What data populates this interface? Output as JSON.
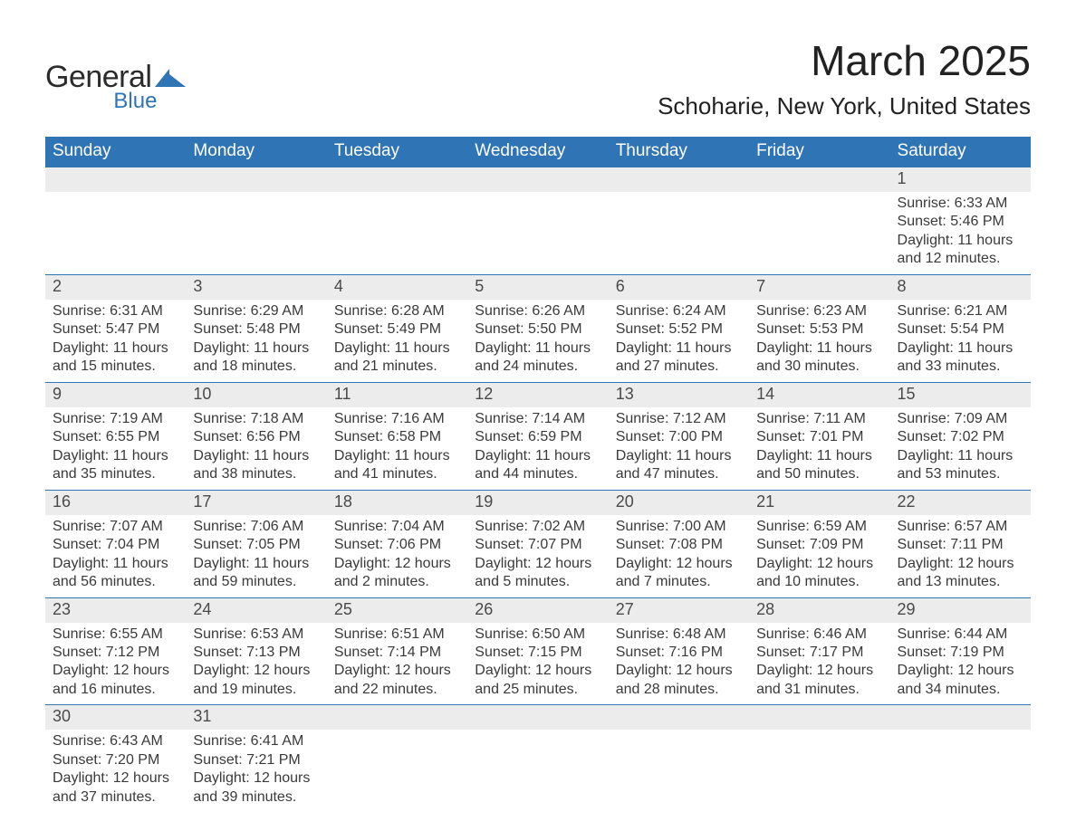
{
  "logo": {
    "general": "General",
    "blue": "Blue",
    "mark_color": "#2f74b5"
  },
  "title": "March 2025",
  "location": "Schoharie, New York, United States",
  "theme": {
    "header_bg": "#2f74b5",
    "header_fg": "#ffffff",
    "daynum_bg": "#ececec",
    "text_color": "#333333",
    "border_color": "#2f74b5",
    "page_bg": "#ffffff"
  },
  "weekdays": [
    "Sunday",
    "Monday",
    "Tuesday",
    "Wednesday",
    "Thursday",
    "Friday",
    "Saturday"
  ],
  "weeks": [
    [
      {
        "day": "",
        "sunrise": "",
        "sunset": "",
        "daylight": ""
      },
      {
        "day": "",
        "sunrise": "",
        "sunset": "",
        "daylight": ""
      },
      {
        "day": "",
        "sunrise": "",
        "sunset": "",
        "daylight": ""
      },
      {
        "day": "",
        "sunrise": "",
        "sunset": "",
        "daylight": ""
      },
      {
        "day": "",
        "sunrise": "",
        "sunset": "",
        "daylight": ""
      },
      {
        "day": "",
        "sunrise": "",
        "sunset": "",
        "daylight": ""
      },
      {
        "day": "1",
        "sunrise": "Sunrise: 6:33 AM",
        "sunset": "Sunset: 5:46 PM",
        "daylight": "Daylight: 11 hours and 12 minutes."
      }
    ],
    [
      {
        "day": "2",
        "sunrise": "Sunrise: 6:31 AM",
        "sunset": "Sunset: 5:47 PM",
        "daylight": "Daylight: 11 hours and 15 minutes."
      },
      {
        "day": "3",
        "sunrise": "Sunrise: 6:29 AM",
        "sunset": "Sunset: 5:48 PM",
        "daylight": "Daylight: 11 hours and 18 minutes."
      },
      {
        "day": "4",
        "sunrise": "Sunrise: 6:28 AM",
        "sunset": "Sunset: 5:49 PM",
        "daylight": "Daylight: 11 hours and 21 minutes."
      },
      {
        "day": "5",
        "sunrise": "Sunrise: 6:26 AM",
        "sunset": "Sunset: 5:50 PM",
        "daylight": "Daylight: 11 hours and 24 minutes."
      },
      {
        "day": "6",
        "sunrise": "Sunrise: 6:24 AM",
        "sunset": "Sunset: 5:52 PM",
        "daylight": "Daylight: 11 hours and 27 minutes."
      },
      {
        "day": "7",
        "sunrise": "Sunrise: 6:23 AM",
        "sunset": "Sunset: 5:53 PM",
        "daylight": "Daylight: 11 hours and 30 minutes."
      },
      {
        "day": "8",
        "sunrise": "Sunrise: 6:21 AM",
        "sunset": "Sunset: 5:54 PM",
        "daylight": "Daylight: 11 hours and 33 minutes."
      }
    ],
    [
      {
        "day": "9",
        "sunrise": "Sunrise: 7:19 AM",
        "sunset": "Sunset: 6:55 PM",
        "daylight": "Daylight: 11 hours and 35 minutes."
      },
      {
        "day": "10",
        "sunrise": "Sunrise: 7:18 AM",
        "sunset": "Sunset: 6:56 PM",
        "daylight": "Daylight: 11 hours and 38 minutes."
      },
      {
        "day": "11",
        "sunrise": "Sunrise: 7:16 AM",
        "sunset": "Sunset: 6:58 PM",
        "daylight": "Daylight: 11 hours and 41 minutes."
      },
      {
        "day": "12",
        "sunrise": "Sunrise: 7:14 AM",
        "sunset": "Sunset: 6:59 PM",
        "daylight": "Daylight: 11 hours and 44 minutes."
      },
      {
        "day": "13",
        "sunrise": "Sunrise: 7:12 AM",
        "sunset": "Sunset: 7:00 PM",
        "daylight": "Daylight: 11 hours and 47 minutes."
      },
      {
        "day": "14",
        "sunrise": "Sunrise: 7:11 AM",
        "sunset": "Sunset: 7:01 PM",
        "daylight": "Daylight: 11 hours and 50 minutes."
      },
      {
        "day": "15",
        "sunrise": "Sunrise: 7:09 AM",
        "sunset": "Sunset: 7:02 PM",
        "daylight": "Daylight: 11 hours and 53 minutes."
      }
    ],
    [
      {
        "day": "16",
        "sunrise": "Sunrise: 7:07 AM",
        "sunset": "Sunset: 7:04 PM",
        "daylight": "Daylight: 11 hours and 56 minutes."
      },
      {
        "day": "17",
        "sunrise": "Sunrise: 7:06 AM",
        "sunset": "Sunset: 7:05 PM",
        "daylight": "Daylight: 11 hours and 59 minutes."
      },
      {
        "day": "18",
        "sunrise": "Sunrise: 7:04 AM",
        "sunset": "Sunset: 7:06 PM",
        "daylight": "Daylight: 12 hours and 2 minutes."
      },
      {
        "day": "19",
        "sunrise": "Sunrise: 7:02 AM",
        "sunset": "Sunset: 7:07 PM",
        "daylight": "Daylight: 12 hours and 5 minutes."
      },
      {
        "day": "20",
        "sunrise": "Sunrise: 7:00 AM",
        "sunset": "Sunset: 7:08 PM",
        "daylight": "Daylight: 12 hours and 7 minutes."
      },
      {
        "day": "21",
        "sunrise": "Sunrise: 6:59 AM",
        "sunset": "Sunset: 7:09 PM",
        "daylight": "Daylight: 12 hours and 10 minutes."
      },
      {
        "day": "22",
        "sunrise": "Sunrise: 6:57 AM",
        "sunset": "Sunset: 7:11 PM",
        "daylight": "Daylight: 12 hours and 13 minutes."
      }
    ],
    [
      {
        "day": "23",
        "sunrise": "Sunrise: 6:55 AM",
        "sunset": "Sunset: 7:12 PM",
        "daylight": "Daylight: 12 hours and 16 minutes."
      },
      {
        "day": "24",
        "sunrise": "Sunrise: 6:53 AM",
        "sunset": "Sunset: 7:13 PM",
        "daylight": "Daylight: 12 hours and 19 minutes."
      },
      {
        "day": "25",
        "sunrise": "Sunrise: 6:51 AM",
        "sunset": "Sunset: 7:14 PM",
        "daylight": "Daylight: 12 hours and 22 minutes."
      },
      {
        "day": "26",
        "sunrise": "Sunrise: 6:50 AM",
        "sunset": "Sunset: 7:15 PM",
        "daylight": "Daylight: 12 hours and 25 minutes."
      },
      {
        "day": "27",
        "sunrise": "Sunrise: 6:48 AM",
        "sunset": "Sunset: 7:16 PM",
        "daylight": "Daylight: 12 hours and 28 minutes."
      },
      {
        "day": "28",
        "sunrise": "Sunrise: 6:46 AM",
        "sunset": "Sunset: 7:17 PM",
        "daylight": "Daylight: 12 hours and 31 minutes."
      },
      {
        "day": "29",
        "sunrise": "Sunrise: 6:44 AM",
        "sunset": "Sunset: 7:19 PM",
        "daylight": "Daylight: 12 hours and 34 minutes."
      }
    ],
    [
      {
        "day": "30",
        "sunrise": "Sunrise: 6:43 AM",
        "sunset": "Sunset: 7:20 PM",
        "daylight": "Daylight: 12 hours and 37 minutes."
      },
      {
        "day": "31",
        "sunrise": "Sunrise: 6:41 AM",
        "sunset": "Sunset: 7:21 PM",
        "daylight": "Daylight: 12 hours and 39 minutes."
      },
      {
        "day": "",
        "sunrise": "",
        "sunset": "",
        "daylight": ""
      },
      {
        "day": "",
        "sunrise": "",
        "sunset": "",
        "daylight": ""
      },
      {
        "day": "",
        "sunrise": "",
        "sunset": "",
        "daylight": ""
      },
      {
        "day": "",
        "sunrise": "",
        "sunset": "",
        "daylight": ""
      },
      {
        "day": "",
        "sunrise": "",
        "sunset": "",
        "daylight": ""
      }
    ]
  ]
}
